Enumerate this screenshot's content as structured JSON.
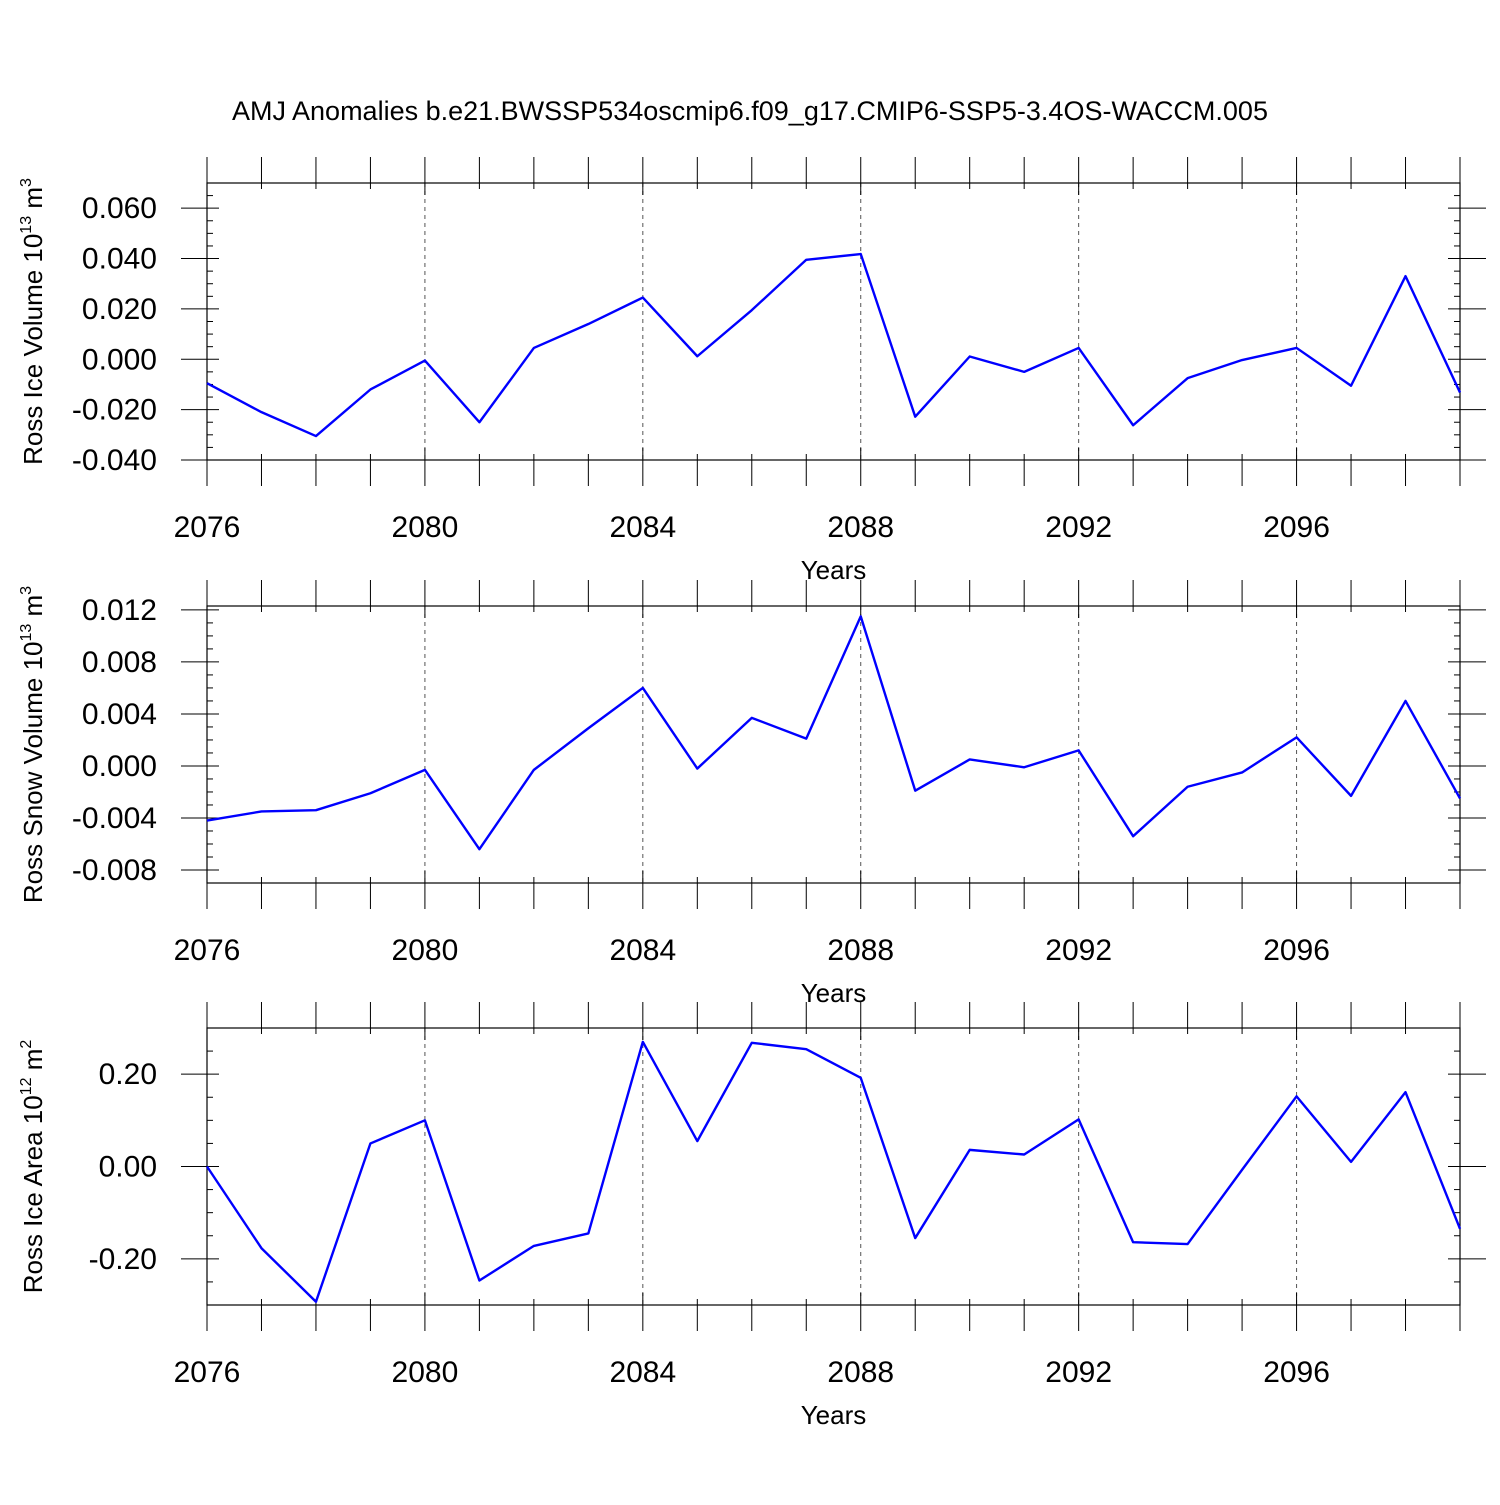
{
  "figure": {
    "title": "AMJ Anomalies b.e21.BWSSP534oscmip6.f09_g17.CMIP6-SSP5-3.4OS-WACCM.005",
    "line_color": "#0000ff"
  },
  "chart_data": [
    {
      "id": "ice-volume",
      "type": "line",
      "ylabel_main": "Ross Ice Volume 10",
      "ylabel_exp": "13",
      "ylabel_unit": " m",
      "ylabel_unit_exp": "3",
      "xlabel": "Years",
      "xlim": [
        2076,
        2099
      ],
      "ylim": [
        -0.04,
        0.07
      ],
      "x_major_ticks": [
        2076,
        2080,
        2084,
        2088,
        2092,
        2096
      ],
      "x_tick_labels": [
        "2076",
        "2080",
        "2084",
        "2088",
        "2092",
        "2096"
      ],
      "y_major_ticks": [
        -0.04,
        -0.02,
        0.0,
        0.02,
        0.04,
        0.06
      ],
      "y_tick_labels": [
        "-0.040",
        "-0.020",
        "0.000",
        "0.020",
        "0.040",
        "0.060"
      ],
      "y_minor_step": 0.005,
      "x": [
        2076,
        2077,
        2078,
        2079,
        2080,
        2081,
        2082,
        2083,
        2084,
        2085,
        2086,
        2087,
        2088,
        2089,
        2090,
        2091,
        2092,
        2093,
        2094,
        2095,
        2096,
        2097,
        2098,
        2099
      ],
      "values": [
        -0.0095,
        -0.021,
        -0.0305,
        -0.012,
        -0.0005,
        -0.025,
        0.0045,
        0.014,
        0.0245,
        0.0012,
        0.0195,
        0.0395,
        0.0418,
        -0.0228,
        0.0011,
        -0.005,
        0.0045,
        -0.0262,
        -0.0075,
        -0.0003,
        0.0045,
        -0.0105,
        0.033,
        -0.0132
      ]
    },
    {
      "id": "snow-volume",
      "type": "line",
      "ylabel_main": "Ross Snow Volume 10",
      "ylabel_exp": "13",
      "ylabel_unit": " m",
      "ylabel_unit_exp": "3",
      "xlabel": "Years",
      "xlim": [
        2076,
        2099
      ],
      "ylim": [
        -0.009,
        0.0123
      ],
      "x_major_ticks": [
        2076,
        2080,
        2084,
        2088,
        2092,
        2096
      ],
      "x_tick_labels": [
        "2076",
        "2080",
        "2084",
        "2088",
        "2092",
        "2096"
      ],
      "y_major_ticks": [
        -0.008,
        -0.004,
        0.0,
        0.004,
        0.008,
        0.012
      ],
      "y_tick_labels": [
        "-0.008",
        "-0.004",
        "0.000",
        "0.004",
        "0.008",
        "0.012"
      ],
      "y_minor_step": 0.001,
      "x": [
        2076,
        2077,
        2078,
        2079,
        2080,
        2081,
        2082,
        2083,
        2084,
        2085,
        2086,
        2087,
        2088,
        2089,
        2090,
        2091,
        2092,
        2093,
        2094,
        2095,
        2096,
        2097,
        2098,
        2099
      ],
      "values": [
        -0.0042,
        -0.0035,
        -0.0034,
        -0.0021,
        -0.0003,
        -0.0064,
        -0.0003,
        0.0029,
        0.006,
        -0.0002,
        0.0037,
        0.0021,
        0.0115,
        -0.0019,
        0.0005,
        -0.0001,
        0.0012,
        -0.0054,
        -0.0016,
        -0.0005,
        0.0022,
        -0.0023,
        0.005,
        -0.0025
      ]
    },
    {
      "id": "ice-area",
      "type": "line",
      "ylabel_main": "Ross Ice Area 10",
      "ylabel_exp": "12",
      "ylabel_unit": " m",
      "ylabel_unit_exp": "2",
      "xlabel": "Years",
      "xlim": [
        2076,
        2099
      ],
      "ylim": [
        -0.3,
        0.3
      ],
      "x_major_ticks": [
        2076,
        2080,
        2084,
        2088,
        2092,
        2096
      ],
      "x_tick_labels": [
        "2076",
        "2080",
        "2084",
        "2088",
        "2092",
        "2096"
      ],
      "y_major_ticks": [
        -0.2,
        0.0,
        0.2
      ],
      "y_tick_labels": [
        "-0.20",
        "0.00",
        "0.20"
      ],
      "y_minor_step": 0.05,
      "x": [
        2076,
        2077,
        2078,
        2079,
        2080,
        2081,
        2082,
        2083,
        2084,
        2085,
        2086,
        2087,
        2088,
        2089,
        2090,
        2091,
        2092,
        2093,
        2094,
        2095,
        2096,
        2097,
        2098,
        2099
      ],
      "values": [
        0.0,
        -0.177,
        -0.293,
        0.05,
        0.1,
        -0.247,
        -0.172,
        -0.145,
        0.27,
        0.055,
        0.268,
        0.254,
        0.192,
        -0.155,
        0.036,
        0.026,
        0.102,
        -0.164,
        -0.168,
        -0.007,
        0.152,
        0.01,
        0.161,
        -0.135
      ]
    }
  ]
}
